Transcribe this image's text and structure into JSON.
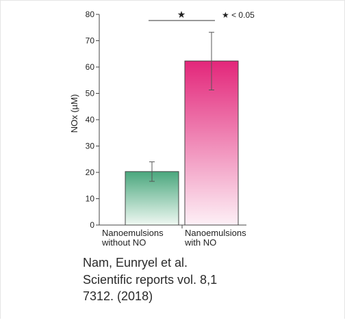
{
  "chart_data": {
    "type": "bar",
    "categories": [
      [
        "Nanoemulsions",
        "without NO"
      ],
      [
        "Nanoemulsions",
        "with NO"
      ]
    ],
    "values": [
      20.3,
      62.3
    ],
    "error_high": [
      24.0,
      73.2
    ],
    "error_low": [
      16.6,
      51.3
    ],
    "ylabel": "NOx (µM)",
    "xlabel": "",
    "ylim": [
      0,
      80
    ],
    "yticks": [
      0,
      10,
      20,
      30,
      40,
      50,
      60,
      70,
      80
    ],
    "bar_colors": [
      {
        "top": "#4aa77d",
        "bottom": "#eff8f2"
      },
      {
        "top": "#e3267a",
        "bottom": "#fdf0f6"
      }
    ],
    "significance": {
      "marker": "★",
      "legend": "★ < 0.05"
    },
    "grid": false
  },
  "caption": {
    "line1": "Nam, Eunryel et al.",
    "line2": "Scientific reports vol. 8,1",
    "line3": "7312. (2018)"
  }
}
